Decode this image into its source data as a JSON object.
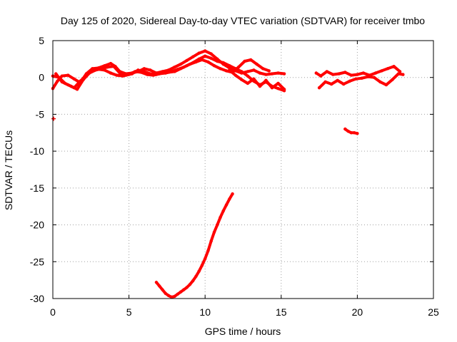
{
  "chart_data": {
    "type": "scatter",
    "title": "Day 125 of 2020, Sidereal Day-to-day VTEC variation (SDTVAR) for receiver tmbo",
    "xlabel": "GPS time / hours",
    "ylabel": "SDTVAR / TECUs",
    "xlim": [
      0,
      25
    ],
    "ylim": [
      -30,
      5
    ],
    "xticks": [
      0,
      5,
      10,
      15,
      20,
      25
    ],
    "yticks": [
      5,
      0,
      -5,
      -10,
      -15,
      -20,
      -25,
      -30
    ],
    "grid": true,
    "color": "#ff0000",
    "series": [
      {
        "name": "trace-1",
        "x": [
          0.0,
          0.3,
          0.6,
          1.0,
          1.4,
          1.8,
          2.2,
          2.6,
          3.0,
          3.4,
          3.8,
          4.1,
          4.4,
          4.8,
          5.2,
          5.6,
          6.0,
          6.4,
          6.8,
          7.2,
          7.6,
          8.0,
          8.4,
          8.8,
          9.2,
          9.6,
          10.0,
          10.4,
          10.8,
          11.2,
          11.6,
          12.0,
          12.4,
          12.8,
          13.2,
          13.6,
          14.0,
          14.4,
          14.8,
          15.2
        ],
        "y": [
          -1.5,
          -0.5,
          0.2,
          0.3,
          -0.2,
          -0.7,
          0.5,
          1.2,
          1.3,
          1.6,
          1.9,
          1.5,
          0.8,
          0.5,
          0.6,
          0.8,
          1.2,
          1.0,
          0.6,
          0.8,
          1.0,
          1.4,
          1.8,
          2.3,
          2.8,
          3.3,
          3.6,
          3.2,
          2.5,
          1.8,
          1.3,
          0.9,
          0.6,
          0.8,
          1.0,
          0.6,
          0.4,
          0.5,
          0.6,
          0.5
        ]
      },
      {
        "name": "trace-2",
        "x": [
          0.0,
          0.4,
          0.8,
          1.2,
          1.6,
          2.0,
          2.4,
          2.8,
          3.2,
          3.6,
          4.0,
          4.4,
          4.8,
          5.2,
          5.6,
          6.0,
          6.4,
          6.8,
          7.2,
          7.6,
          8.0,
          8.4,
          8.8,
          9.2,
          9.6,
          10.0,
          10.4,
          10.8,
          11.2,
          11.6,
          12.0,
          12.4,
          12.8,
          13.2,
          13.6,
          14.0,
          14.4,
          14.8,
          15.2
        ],
        "y": [
          0.2,
          0.0,
          -0.8,
          -1.2,
          -1.6,
          -0.3,
          0.6,
          1.0,
          1.2,
          1.4,
          1.5,
          0.6,
          0.3,
          0.5,
          1.0,
          0.8,
          0.5,
          0.4,
          0.6,
          0.7,
          0.8,
          1.2,
          1.6,
          2.0,
          2.5,
          2.9,
          2.6,
          2.2,
          2.0,
          1.6,
          1.2,
          0.8,
          0.2,
          -0.5,
          -1.0,
          -0.6,
          -1.2,
          -1.5,
          -1.8
        ]
      },
      {
        "name": "trace-3",
        "x": [
          0.2,
          0.6,
          1.0,
          1.4,
          1.8,
          2.2,
          2.6,
          3.0,
          3.4,
          3.8,
          4.2,
          4.6,
          5.0,
          5.4,
          5.8,
          6.2,
          6.6,
          7.0,
          7.4,
          7.8,
          8.2,
          8.6,
          9.0,
          9.4,
          9.8,
          10.2,
          10.6,
          11.0,
          11.4,
          11.8,
          12.2,
          12.6,
          13.0,
          13.4,
          13.8,
          14.2
        ],
        "y": [
          0.5,
          -0.6,
          -1.0,
          -1.4,
          -0.5,
          0.3,
          0.9,
          1.1,
          1.0,
          0.6,
          0.3,
          0.2,
          0.4,
          0.8,
          0.7,
          0.4,
          0.3,
          0.5,
          0.6,
          0.8,
          1.1,
          1.4,
          1.8,
          2.1,
          2.4,
          2.1,
          1.6,
          1.2,
          0.9,
          0.7,
          1.4,
          2.2,
          2.4,
          1.8,
          1.2,
          0.9
        ]
      },
      {
        "name": "trace-4",
        "x": [
          11.6,
          12.0,
          12.4,
          12.8,
          13.2,
          13.6,
          14.0,
          14.4,
          14.8,
          15.2
        ],
        "y": [
          1.0,
          0.3,
          -0.3,
          -0.8,
          -0.2,
          -1.2,
          -0.4,
          -1.4,
          -0.8,
          -1.6
        ]
      },
      {
        "name": "trace-5",
        "x": [
          17.3,
          17.6,
          18.0,
          18.4,
          18.8,
          19.2,
          19.6,
          20.0,
          20.4,
          20.8,
          21.2,
          21.6,
          22.0,
          22.4,
          22.8
        ],
        "y": [
          0.6,
          0.2,
          0.8,
          0.4,
          0.5,
          0.7,
          0.3,
          0.4,
          0.6,
          0.3,
          0.6,
          0.9,
          1.2,
          1.5,
          0.8
        ]
      },
      {
        "name": "trace-6",
        "x": [
          17.5,
          17.9,
          18.3,
          18.7,
          19.1,
          19.5,
          19.9,
          20.3,
          20.7,
          21.1,
          21.5,
          21.9,
          22.3,
          22.7,
          23.0
        ],
        "y": [
          -1.4,
          -0.6,
          -0.9,
          -0.4,
          -0.9,
          -0.5,
          -0.2,
          -0.1,
          0.1,
          0.0,
          -0.6,
          -1.0,
          -0.3,
          0.5,
          0.4
        ]
      },
      {
        "name": "trace-7",
        "x": [
          6.8,
          7.0,
          7.2,
          7.4,
          7.6,
          7.8,
          8.0,
          8.2,
          8.4,
          8.6,
          8.8,
          9.0,
          9.2,
          9.4,
          9.6,
          9.8,
          10.0,
          10.2,
          10.4,
          10.6,
          10.8,
          11.0,
          11.2,
          11.4,
          11.6,
          11.8
        ],
        "y": [
          -27.8,
          -28.3,
          -28.8,
          -29.3,
          -29.6,
          -29.8,
          -29.7,
          -29.4,
          -29.1,
          -28.8,
          -28.5,
          -28.1,
          -27.6,
          -27.0,
          -26.3,
          -25.5,
          -24.6,
          -23.5,
          -22.2,
          -21.0,
          -20.0,
          -19.0,
          -18.1,
          -17.3,
          -16.5,
          -15.8
        ]
      },
      {
        "name": "trace-8",
        "x": [
          19.2,
          19.4,
          19.6,
          19.8,
          20.0
        ],
        "y": [
          -7.0,
          -7.3,
          -7.5,
          -7.5,
          -7.6
        ]
      },
      {
        "name": "trace-9",
        "x": [
          0.05
        ],
        "y": [
          -5.6
        ]
      }
    ]
  }
}
